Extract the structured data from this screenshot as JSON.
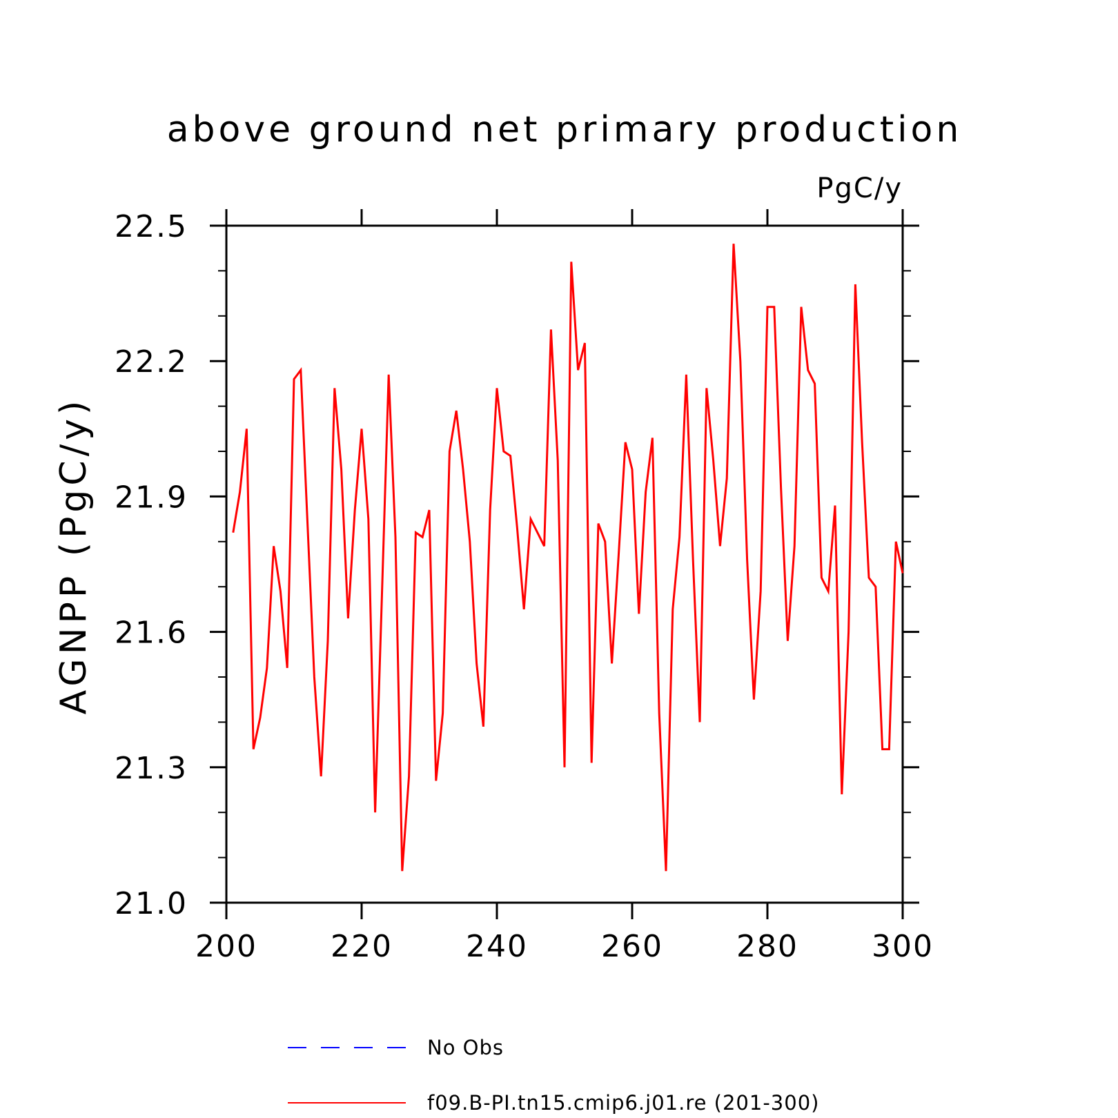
{
  "chart_data": {
    "type": "line",
    "title": "above ground net primary production",
    "units_label": "PgC/y",
    "ylabel": "AGNPP  (PgC/y)",
    "xlabel": "",
    "xlim": [
      200,
      300
    ],
    "ylim": [
      21.0,
      22.5
    ],
    "x_ticks": [
      "200",
      "220",
      "240",
      "260",
      "280",
      "300"
    ],
    "y_ticks": [
      "21.0",
      "21.3",
      "21.6",
      "21.9",
      "22.2",
      "22.5"
    ],
    "x_tick_values": [
      200,
      220,
      240,
      260,
      280,
      300
    ],
    "y_tick_values": [
      21.0,
      21.3,
      21.6,
      21.9,
      22.2,
      22.5
    ],
    "y_minor_step": 0.1,
    "legend": {
      "placement": "bottom",
      "entries": [
        {
          "label": "No Obs",
          "color": "#0000ff",
          "style": "dashed"
        },
        {
          "label": "f09.B-PI.tn15.cmip6.j01.re (201-300)",
          "color": "#ff0000",
          "style": "solid"
        }
      ]
    },
    "series": [
      {
        "name": "f09.B-PI.tn15.cmip6.j01.re (201-300)",
        "color": "#ff0000",
        "x": [
          201,
          202,
          203,
          204,
          205,
          206,
          207,
          208,
          209,
          210,
          211,
          212,
          213,
          214,
          215,
          216,
          217,
          218,
          219,
          220,
          221,
          222,
          223,
          224,
          225,
          226,
          227,
          228,
          229,
          230,
          231,
          232,
          233,
          234,
          235,
          236,
          237,
          238,
          239,
          240,
          241,
          242,
          243,
          244,
          245,
          246,
          247,
          248,
          249,
          250,
          251,
          252,
          253,
          254,
          255,
          256,
          257,
          258,
          259,
          260,
          261,
          262,
          263,
          264,
          265,
          266,
          267,
          268,
          269,
          270,
          271,
          272,
          273,
          274,
          275,
          276,
          277,
          278,
          279,
          280,
          281,
          282,
          283,
          284,
          285,
          286,
          287,
          288,
          289,
          290,
          291,
          292,
          293,
          294,
          295,
          296,
          297,
          298,
          299,
          300
        ],
        "values": [
          21.82,
          21.91,
          22.05,
          21.34,
          21.41,
          21.52,
          21.79,
          21.69,
          21.52,
          22.16,
          22.18,
          21.84,
          21.5,
          21.28,
          21.58,
          22.14,
          21.96,
          21.63,
          21.87,
          22.05,
          21.85,
          21.2,
          21.68,
          22.17,
          21.81,
          21.07,
          21.28,
          21.82,
          21.81,
          21.87,
          21.27,
          21.42,
          22.0,
          22.09,
          21.96,
          21.8,
          21.53,
          21.39,
          21.87,
          22.14,
          22.0,
          21.99,
          21.83,
          21.65,
          21.85,
          21.82,
          21.79,
          22.27,
          21.98,
          21.3,
          22.42,
          22.18,
          22.24,
          21.31,
          21.84,
          21.8,
          21.53,
          21.77,
          22.02,
          21.96,
          21.64,
          21.91,
          22.03,
          21.42,
          21.07,
          21.65,
          21.81,
          22.17,
          21.76,
          21.4,
          22.14,
          21.98,
          21.79,
          21.94,
          22.46,
          22.2,
          21.76,
          21.45,
          21.69,
          22.32,
          22.32,
          21.92,
          21.58,
          21.79,
          22.32,
          22.18,
          22.15,
          21.72,
          21.69,
          21.88,
          21.24,
          21.6,
          22.37,
          22.02,
          21.72,
          21.7,
          21.34,
          21.34,
          21.8,
          21.73
        ]
      }
    ]
  }
}
